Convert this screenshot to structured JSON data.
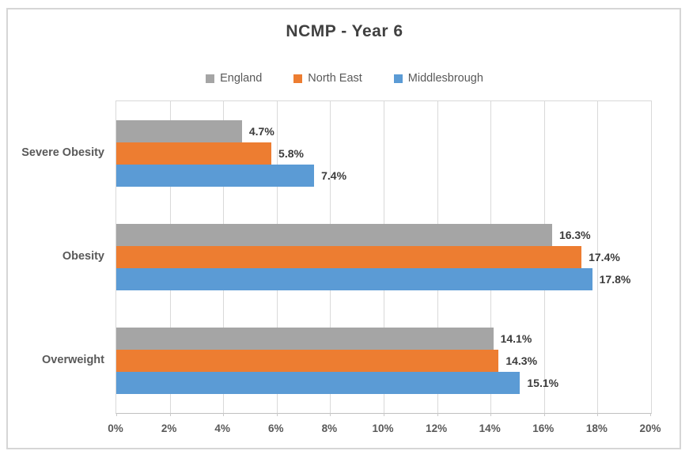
{
  "chart_data": {
    "type": "bar",
    "orientation": "horizontal",
    "title": "NCMP - Year 6",
    "categories": [
      "Severe Obesity",
      "Obesity",
      "Overweight"
    ],
    "series": [
      {
        "name": "England",
        "color": "#A5A5A5",
        "values": [
          4.7,
          16.3,
          14.1
        ],
        "labels": [
          "4.7%",
          "16.3%",
          "14.1%"
        ]
      },
      {
        "name": "North East",
        "color": "#ED7D31",
        "values": [
          5.8,
          17.4,
          14.3
        ],
        "labels": [
          "5.8%",
          "17.4%",
          "14.3%"
        ]
      },
      {
        "name": "Middlesbrough",
        "color": "#5B9BD5",
        "values": [
          7.4,
          17.8,
          15.1
        ],
        "labels": [
          "7.4%",
          "17.8%",
          "15.1%"
        ]
      }
    ],
    "x_axis": {
      "min": 0,
      "max": 20,
      "tick_step": 2,
      "ticks": [
        "0%",
        "2%",
        "4%",
        "6%",
        "8%",
        "10%",
        "12%",
        "14%",
        "16%",
        "18%",
        "20%"
      ]
    },
    "legend": {
      "position": "top",
      "entries": [
        "England",
        "North East",
        "Middlesbrough"
      ]
    },
    "grid": true,
    "colors": {
      "grid": "#D9D9D9",
      "axis_line": "#BFBFBF",
      "frame_border": "#D6D6D6",
      "title_text": "#404040",
      "axis_text": "#595959",
      "value_text": "#3B3B3B"
    }
  }
}
